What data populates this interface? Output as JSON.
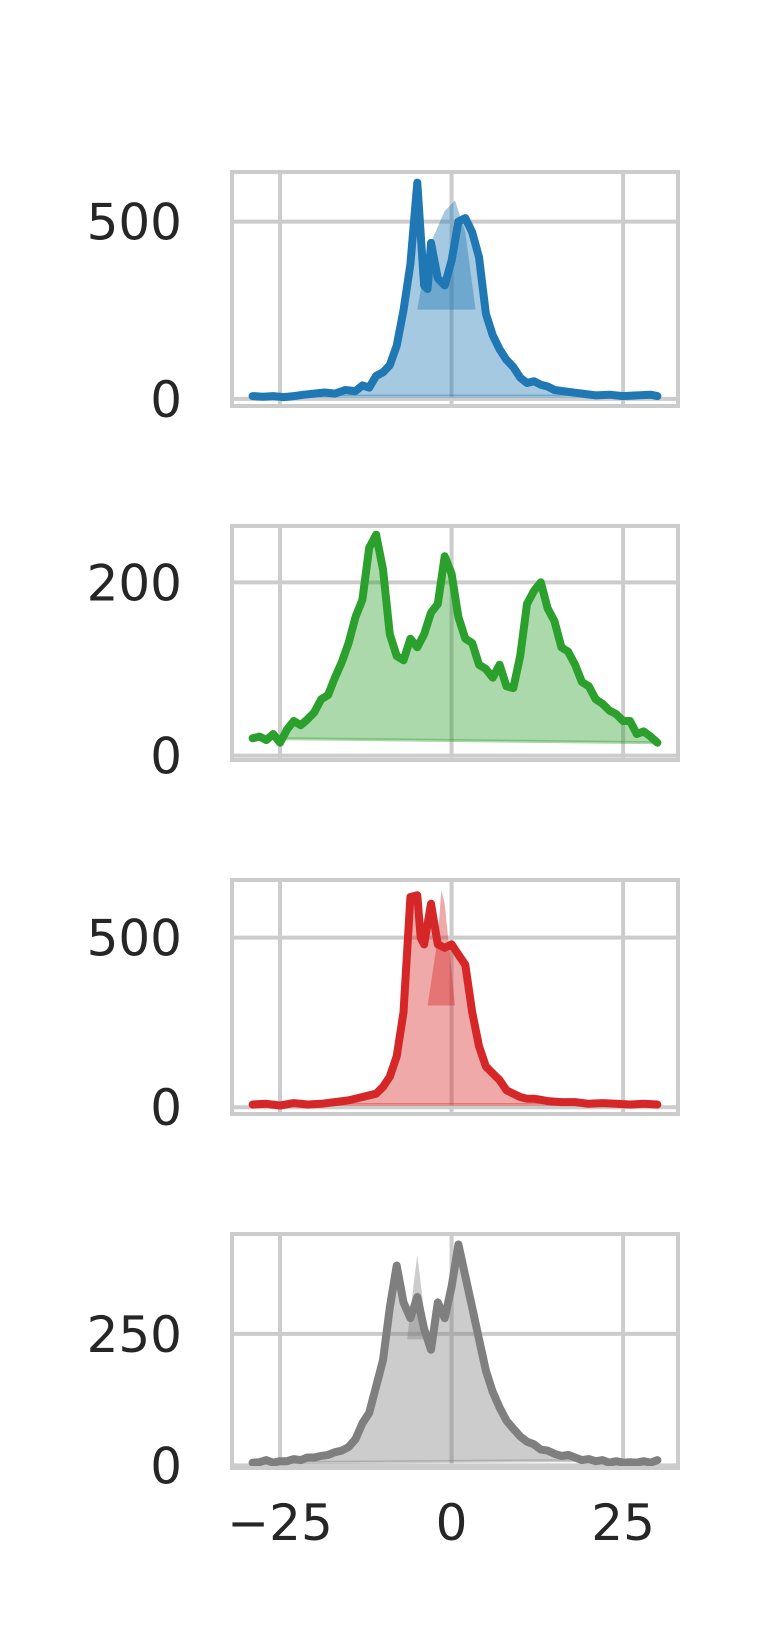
{
  "chart_data": [
    {
      "type": "area",
      "color": "#1f77b4",
      "xlim": [
        -32,
        33
      ],
      "ylim": [
        -20,
        640
      ],
      "x_ticks": [
        -25,
        0,
        25
      ],
      "y_ticks": [
        0,
        500
      ],
      "y_tick_labels": [
        "0",
        "500"
      ],
      "grid": true,
      "x": [
        -29,
        -27.5,
        -26,
        -24.5,
        -23,
        -21.5,
        -20,
        -18.5,
        -17,
        -15.5,
        -14,
        -13,
        -12,
        -11,
        -10,
        -9,
        -8,
        -7,
        -6,
        -5,
        -4,
        -3.5,
        -3,
        -2,
        -1,
        0,
        1,
        2,
        3,
        4,
        5,
        6,
        7,
        8,
        9,
        10,
        11,
        12,
        13,
        14,
        15,
        17,
        19,
        21,
        23,
        25,
        27,
        29,
        30
      ],
      "y": [
        8,
        6,
        8,
        5,
        8,
        12,
        15,
        18,
        15,
        25,
        22,
        38,
        32,
        65,
        75,
        95,
        150,
        250,
        380,
        610,
        320,
        310,
        440,
        340,
        320,
        390,
        500,
        510,
        470,
        400,
        240,
        180,
        140,
        110,
        90,
        60,
        45,
        50,
        40,
        35,
        25,
        20,
        15,
        10,
        12,
        8,
        10,
        12,
        8
      ],
      "fill_x": [
        -3.5,
        -1,
        0.5,
        2
      ],
      "fill_y": [
        420,
        530,
        560,
        470
      ]
    },
    {
      "type": "area",
      "color": "#2ca02c",
      "xlim": [
        -32,
        33
      ],
      "ylim": [
        -5,
        265
      ],
      "x_ticks": [
        -25,
        0,
        25
      ],
      "y_ticks": [
        0,
        200
      ],
      "y_tick_labels": [
        "0",
        "200"
      ],
      "grid": true,
      "x": [
        -29,
        -28,
        -27,
        -26,
        -25,
        -24,
        -23,
        -22,
        -21,
        -20,
        -19,
        -18,
        -17,
        -16,
        -15,
        -14,
        -13,
        -12,
        -11,
        -10,
        -9,
        -8,
        -7,
        -6,
        -5,
        -4,
        -3,
        -2,
        -1,
        0,
        1,
        2,
        3,
        4,
        5,
        6,
        7,
        8,
        9,
        10,
        11,
        12,
        13,
        14,
        15,
        16,
        17,
        18,
        19,
        20,
        21,
        22,
        23,
        24,
        25,
        26,
        27,
        28,
        29,
        30
      ],
      "y": [
        20,
        22,
        18,
        25,
        15,
        30,
        40,
        35,
        42,
        50,
        65,
        70,
        90,
        108,
        130,
        160,
        180,
        240,
        255,
        215,
        140,
        115,
        110,
        135,
        125,
        140,
        165,
        175,
        230,
        210,
        160,
        135,
        130,
        105,
        100,
        90,
        105,
        80,
        78,
        115,
        175,
        190,
        200,
        170,
        155,
        125,
        120,
        105,
        85,
        80,
        65,
        60,
        52,
        48,
        40,
        40,
        25,
        28,
        22,
        15
      ],
      "fill_x": [],
      "fill_y": []
    },
    {
      "type": "area",
      "color": "#d62728",
      "xlim": [
        -32,
        33
      ],
      "ylim": [
        -20,
        670
      ],
      "x_ticks": [
        -25,
        0,
        25
      ],
      "y_ticks": [
        0,
        500
      ],
      "y_tick_labels": [
        "0",
        "500"
      ],
      "grid": true,
      "x": [
        -29,
        -27,
        -25,
        -23,
        -21,
        -19,
        -17,
        -15,
        -13,
        -11,
        -10,
        -9,
        -8,
        -7,
        -6,
        -5,
        -4.5,
        -4,
        -3,
        -2,
        -1,
        0,
        1,
        2,
        3,
        4,
        5,
        6,
        7,
        8,
        9,
        10,
        11,
        12,
        13,
        14,
        16,
        18,
        20,
        22,
        24,
        26,
        28,
        30
      ],
      "y": [
        8,
        10,
        5,
        12,
        8,
        10,
        15,
        20,
        30,
        40,
        60,
        90,
        150,
        280,
        620,
        625,
        500,
        480,
        600,
        480,
        470,
        480,
        450,
        420,
        280,
        180,
        120,
        100,
        80,
        50,
        40,
        30,
        25,
        25,
        22,
        18,
        15,
        15,
        10,
        12,
        10,
        8,
        10,
        8
      ],
      "fill_x": [
        -2,
        -1.5,
        -1
      ],
      "fill_y": [
        500,
        640,
        600
      ]
    },
    {
      "type": "area",
      "color": "#7f7f7f",
      "xlim": [
        -32,
        33
      ],
      "ylim": [
        -5,
        440
      ],
      "x_ticks": [
        -25,
        0,
        25
      ],
      "y_ticks": [
        0,
        250
      ],
      "y_tick_labels": [
        "0",
        "250"
      ],
      "grid": true,
      "x": [
        -29,
        -28,
        -27,
        -26,
        -25,
        -24,
        -23,
        -22,
        -21,
        -20,
        -19,
        -18,
        -17,
        -16,
        -15,
        -14,
        -13,
        -12,
        -11,
        -10,
        -9,
        -8,
        -7,
        -6,
        -5,
        -4,
        -3,
        -2,
        -1,
        0,
        1,
        2,
        3,
        4,
        5,
        6,
        7,
        8,
        9,
        10,
        11,
        12,
        13,
        14,
        15,
        16,
        17,
        18,
        19,
        20,
        21,
        22,
        23,
        24,
        25,
        26,
        27,
        28,
        29,
        30
      ],
      "y": [
        5,
        6,
        10,
        5,
        8,
        8,
        12,
        10,
        15,
        15,
        18,
        20,
        25,
        28,
        35,
        50,
        80,
        100,
        150,
        200,
        300,
        380,
        310,
        280,
        320,
        260,
        220,
        310,
        280,
        340,
        420,
        360,
        300,
        240,
        180,
        140,
        110,
        85,
        70,
        55,
        45,
        40,
        30,
        28,
        22,
        18,
        20,
        15,
        10,
        12,
        8,
        10,
        5,
        8,
        5,
        6,
        5,
        8,
        5,
        10
      ],
      "fill_x": [
        -5
      ],
      "fill_y": [
        400
      ]
    }
  ]
}
